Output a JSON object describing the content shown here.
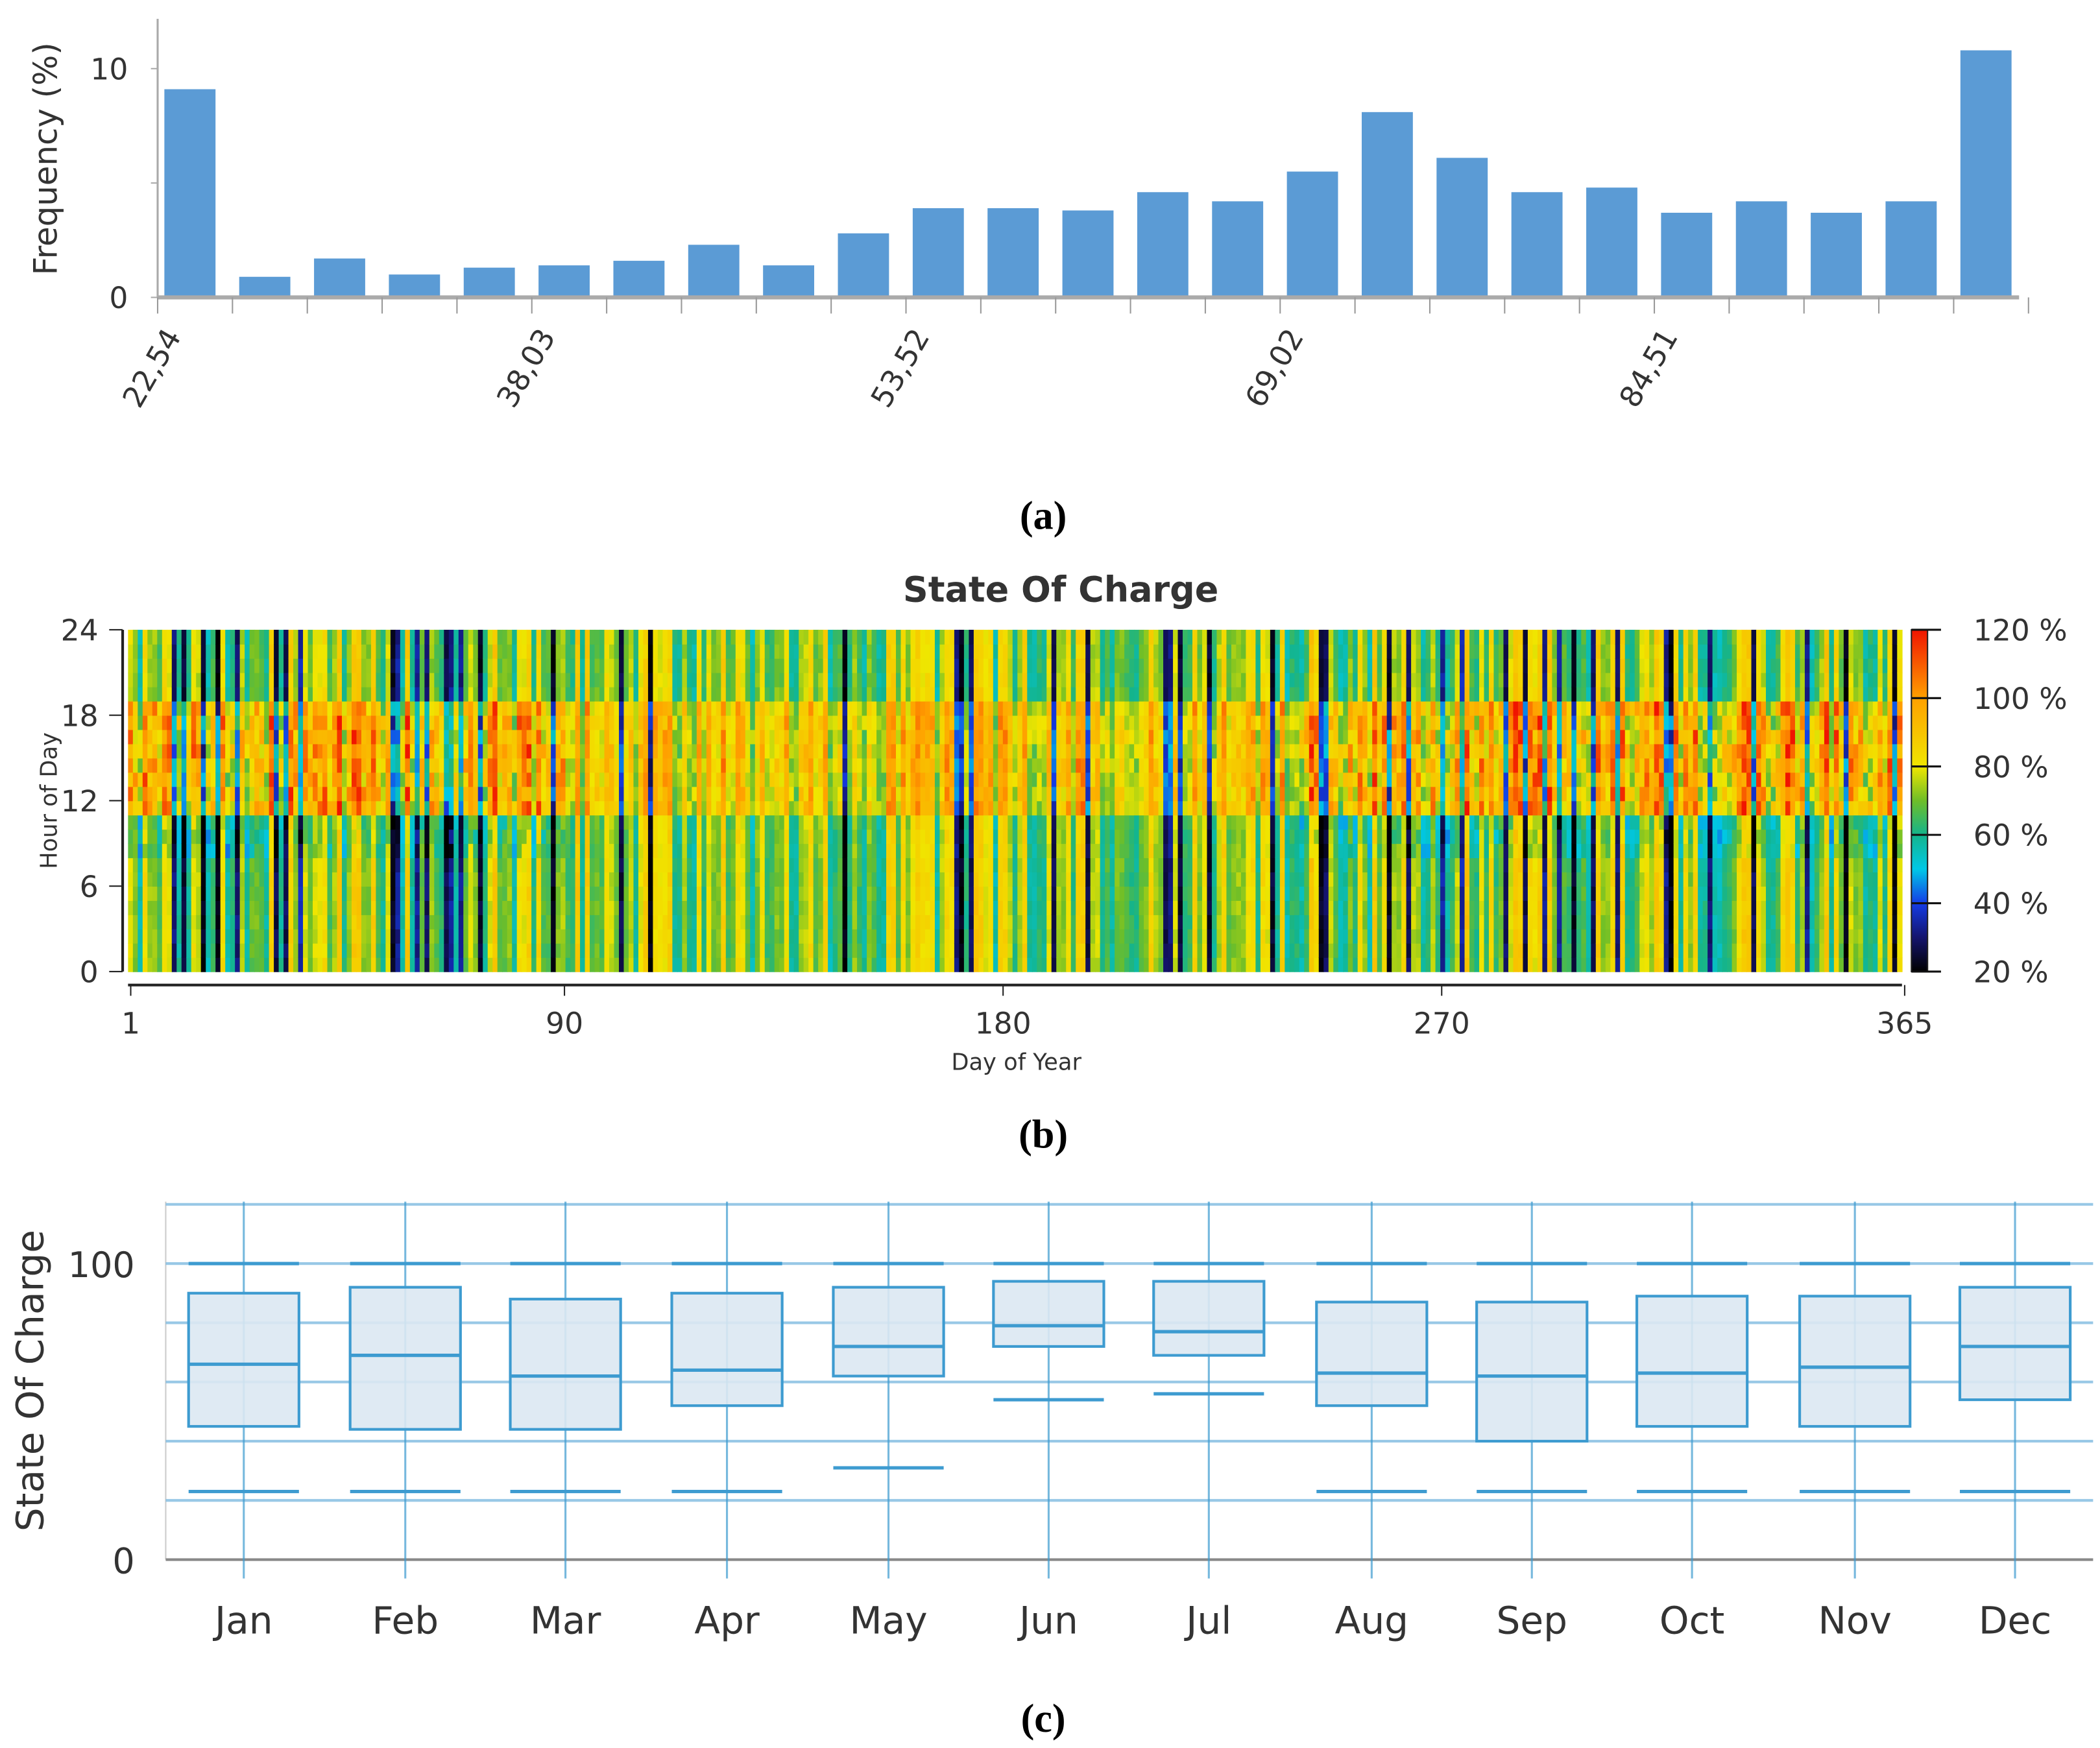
{
  "captions": {
    "a": "(a)",
    "b": "(b)",
    "c": "(c)"
  },
  "chart_data": [
    {
      "type": "bar",
      "panel": "a",
      "title": "",
      "xlabel": "",
      "ylabel": "Frequency (%)",
      "ylim": [
        0,
        11
      ],
      "yticks": [
        "0",
        "10"
      ],
      "bin_start": 22.54,
      "bin_width": 3.098,
      "xtick_labels": [
        "22,54",
        "38,03",
        "53,52",
        "69,02",
        "84,51"
      ],
      "values": [
        9.1,
        0.9,
        1.7,
        1.0,
        1.3,
        1.4,
        1.6,
        2.3,
        1.4,
        2.8,
        3.9,
        3.9,
        3.8,
        4.6,
        4.2,
        5.5,
        8.1,
        6.1,
        4.6,
        4.8,
        3.7,
        4.2,
        3.7,
        4.2,
        10.8
      ],
      "color": "#5b9bd5"
    },
    {
      "type": "heatmap",
      "panel": "b",
      "title": "State Of Charge",
      "xlabel": "Day of Year",
      "ylabel": "Hour of Day",
      "xlim": [
        1,
        365
      ],
      "ylim": [
        0,
        24
      ],
      "xtick_labels": [
        "1",
        "90",
        "180",
        "270",
        "365"
      ],
      "xticks": [
        1,
        90,
        180,
        270,
        365
      ],
      "ytick_labels": [
        "0",
        "6",
        "12",
        "18",
        "24"
      ],
      "yticks": [
        0,
        6,
        12,
        18,
        24
      ],
      "colorbar": {
        "range": [
          20,
          120
        ],
        "tick_labels": [
          "120 %",
          "100 %",
          "80 %",
          "60 %",
          "40 %",
          "20 %"
        ],
        "ticks": [
          120,
          100,
          80,
          60,
          40,
          20
        ]
      }
    },
    {
      "type": "box",
      "panel": "c",
      "ylabel": "State Of Charge",
      "ylim": [
        0,
        120
      ],
      "ytick_labels": [
        "0",
        "100"
      ],
      "categories": [
        "Jan",
        "Feb",
        "Mar",
        "Apr",
        "May",
        "Jun",
        "Jul",
        "Aug",
        "Sep",
        "Oct",
        "Nov",
        "Dec"
      ],
      "whisker_high": [
        100,
        100,
        100,
        100,
        100,
        100,
        100,
        100,
        100,
        100,
        100,
        100
      ],
      "q3": [
        90,
        92,
        88,
        90,
        92,
        94,
        94,
        87,
        87,
        89,
        89,
        92
      ],
      "median": [
        66,
        69,
        62,
        64,
        72,
        79,
        77,
        63,
        62,
        63,
        65,
        72
      ],
      "q1": [
        45,
        44,
        44,
        52,
        62,
        72,
        69,
        52,
        40,
        45,
        45,
        54
      ],
      "whisker_low": [
        23,
        23,
        23,
        23,
        31,
        54,
        56,
        23,
        23,
        23,
        23,
        23
      ],
      "color": "#3d9bd0"
    }
  ]
}
